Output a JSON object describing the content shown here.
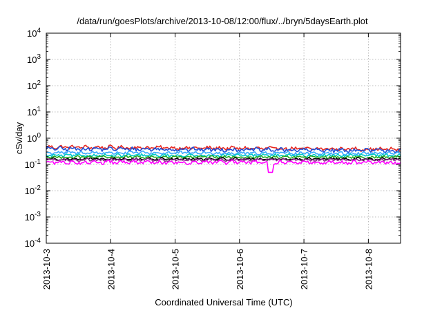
{
  "chart_data": {
    "type": "line",
    "title": "/data/run/goesPlots/archive/2013-10-08/12:00/flux/../bryn/5daysEarth.plot",
    "xlabel": "Coordinated Universal Time (UTC)",
    "ylabel": "cSv/day",
    "yscale": "log",
    "ylim": [
      0.0001,
      10000
    ],
    "xlim": [
      "2013-10-03",
      "2013-10-08 12:00"
    ],
    "grid": true,
    "x_ticks": [
      "2013-10-3",
      "2013-10-4",
      "2013-10-5",
      "2013-10-6",
      "2013-10-7",
      "2013-10-8"
    ],
    "y_ticks": [
      {
        "value": 0.0001,
        "base": "10",
        "exp": "-4"
      },
      {
        "value": 0.001,
        "base": "10",
        "exp": "-3"
      },
      {
        "value": 0.01,
        "base": "10",
        "exp": "-2"
      },
      {
        "value": 0.1,
        "base": "10",
        "exp": "-1"
      },
      {
        "value": 1,
        "base": "10",
        "exp": "0"
      },
      {
        "value": 10,
        "base": "10",
        "exp": "1"
      },
      {
        "value": 100,
        "base": "10",
        "exp": "2"
      },
      {
        "value": 1000,
        "base": "10",
        "exp": "3"
      },
      {
        "value": 10000,
        "base": "10",
        "exp": "4"
      }
    ],
    "series": [
      {
        "color": "#e8261e",
        "level": 0.46,
        "noise": 0.12,
        "trend": -0.18
      },
      {
        "color": "#1f4fd6",
        "level": 0.4,
        "noise": 0.13,
        "trend": -0.15
      },
      {
        "color": "#3aa8ff",
        "level": 0.28,
        "noise": 0.11,
        "trend": -0.05
      },
      {
        "color": "#00c8c8",
        "level": 0.22,
        "noise": 0.09,
        "trend": 0.0
      },
      {
        "color": "#22aa22",
        "level": 0.19,
        "noise": 0.08,
        "trend": 0.0
      },
      {
        "color": "#000000",
        "level": 0.16,
        "noise": 0.08,
        "trend": 0.0
      },
      {
        "color": "#8a2a8a",
        "level": 0.15,
        "noise": 0.09,
        "trend": 0.0
      },
      {
        "color": "#ff00ff",
        "level": 0.12,
        "noise": 0.12,
        "trend": 0.0,
        "dip": {
          "x": "2013-10-06 11:30",
          "value": 0.05
        }
      }
    ]
  }
}
